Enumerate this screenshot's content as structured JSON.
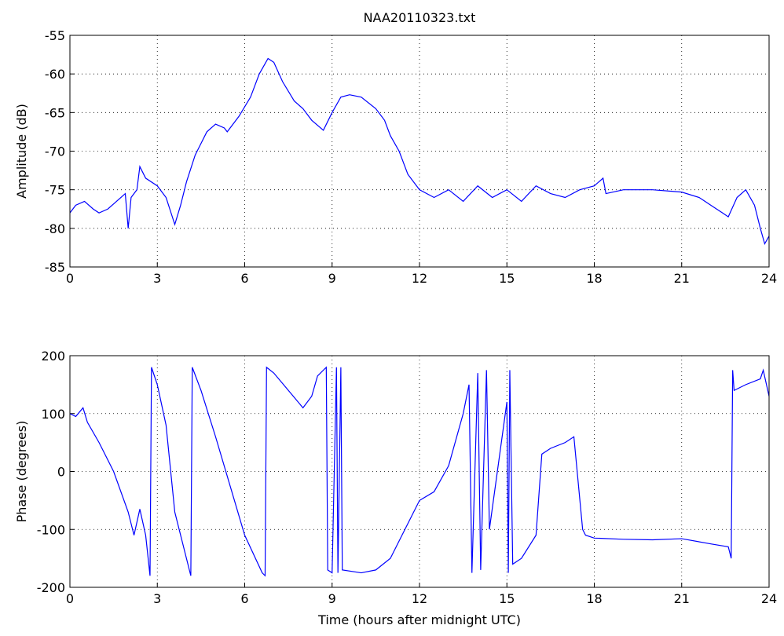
{
  "chart_data": [
    {
      "type": "line",
      "title": "NAA20110323.txt",
      "ylabel": "Amplitude (dB)",
      "xlim": [
        0,
        24
      ],
      "xticks": [
        0,
        3,
        6,
        9,
        12,
        15,
        18,
        21,
        24
      ],
      "ylim": [
        -85,
        -55
      ],
      "yticks": [
        -85,
        -80,
        -75,
        -70,
        -65,
        -60,
        -55
      ],
      "grid": true,
      "x": [
        0,
        0.2,
        0.5,
        0.8,
        1.0,
        1.3,
        1.6,
        1.9,
        2.0,
        2.1,
        2.3,
        2.4,
        2.6,
        3.0,
        3.3,
        3.6,
        3.8,
        4.0,
        4.3,
        4.7,
        5.0,
        5.3,
        5.4,
        5.8,
        6.2,
        6.5,
        6.8,
        7.0,
        7.3,
        7.7,
        8.0,
        8.3,
        8.7,
        9.0,
        9.3,
        9.6,
        10.0,
        10.5,
        10.8,
        11.0,
        11.3,
        11.6,
        12.0,
        12.5,
        13.0,
        13.5,
        14.0,
        14.5,
        15.0,
        15.5,
        16.0,
        16.5,
        17.0,
        17.5,
        18.0,
        18.3,
        18.4,
        19.0,
        20.0,
        21.0,
        21.6,
        22.0,
        22.4,
        22.6,
        22.9,
        23.2,
        23.5,
        23.7,
        23.85,
        24.0
      ],
      "series": [
        {
          "color": "#0000ff",
          "values": [
            -78,
            -77,
            -76.5,
            -77.5,
            -78,
            -77.5,
            -76.5,
            -75.5,
            -80,
            -76,
            -75,
            -72,
            -73.5,
            -74.5,
            -76,
            -79.5,
            -77,
            -74,
            -70.5,
            -67.5,
            -66.5,
            -67,
            -67.5,
            -65.5,
            -63,
            -60,
            -58,
            -58.5,
            -61,
            -63.5,
            -64.5,
            -66,
            -67.3,
            -65,
            -63,
            -62.7,
            -63,
            -64.5,
            -66,
            -68,
            -70,
            -73,
            -75,
            -76,
            -75,
            -76.5,
            -74.5,
            -76,
            -75,
            -76.5,
            -74.5,
            -75.5,
            -76,
            -75,
            -74.5,
            -73.5,
            -75.5,
            -75,
            -75,
            -75.3,
            -76,
            -77,
            -78,
            -78.5,
            -76,
            -75,
            -77,
            -80,
            -82,
            -81
          ]
        }
      ]
    },
    {
      "type": "line",
      "ylabel": "Phase (degrees)",
      "xlabel": "Time (hours after midnight UTC)",
      "xlim": [
        0,
        24
      ],
      "xticks": [
        0,
        3,
        6,
        9,
        12,
        15,
        18,
        21,
        24
      ],
      "ylim": [
        -200,
        200
      ],
      "yticks": [
        -200,
        -100,
        0,
        100,
        200
      ],
      "grid": true,
      "x": [
        0,
        0.2,
        0.45,
        0.6,
        1.0,
        1.5,
        2.0,
        2.2,
        2.4,
        2.6,
        2.75,
        2.8,
        3.0,
        3.3,
        3.6,
        4.1,
        4.15,
        4.2,
        4.5,
        5.0,
        5.5,
        6.0,
        6.6,
        6.7,
        6.75,
        7.0,
        7.5,
        8.0,
        8.3,
        8.5,
        8.8,
        8.85,
        9.0,
        9.15,
        9.2,
        9.3,
        9.35,
        10.0,
        10.5,
        11.0,
        11.5,
        12.0,
        12.5,
        13.0,
        13.5,
        13.7,
        13.8,
        14.0,
        14.1,
        14.3,
        14.4,
        15.0,
        15.05,
        15.1,
        15.2,
        15.5,
        16.0,
        16.2,
        16.5,
        17.0,
        17.3,
        17.6,
        17.7,
        18.0,
        19.0,
        20.0,
        21.0,
        22.0,
        22.6,
        22.7,
        22.75,
        22.8,
        23.2,
        23.7,
        23.8,
        24.0
      ],
      "series": [
        {
          "color": "#0000ff",
          "values": [
            100,
            95,
            110,
            85,
            50,
            0,
            -70,
            -110,
            -65,
            -110,
            -180,
            180,
            150,
            80,
            -70,
            -170,
            -180,
            180,
            140,
            60,
            -25,
            -110,
            -175,
            -180,
            180,
            170,
            140,
            110,
            130,
            165,
            180,
            -170,
            -175,
            180,
            -175,
            180,
            -170,
            -175,
            -170,
            -150,
            -100,
            -50,
            -35,
            10,
            100,
            150,
            -175,
            170,
            -170,
            175,
            -100,
            120,
            -175,
            175,
            -160,
            -150,
            -110,
            30,
            40,
            50,
            60,
            -100,
            -110,
            -115,
            -117,
            -118,
            -116,
            -125,
            -130,
            -150,
            175,
            140,
            150,
            160,
            175,
            130
          ]
        }
      ]
    }
  ]
}
